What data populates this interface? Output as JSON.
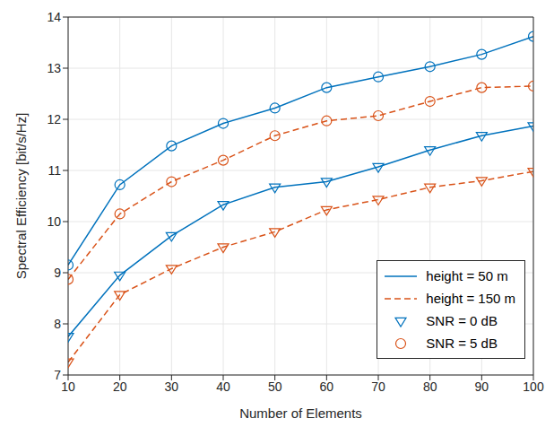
{
  "chart_data": {
    "type": "line",
    "x_label": "Number of Elements",
    "y_label": "Spectral Efficiency [bit/s/Hz]",
    "x": [
      10,
      20,
      30,
      40,
      50,
      60,
      70,
      80,
      90,
      100
    ],
    "series": [
      {
        "name": "height = 50 m",
        "color": "#0072bd",
        "line_style": "solid",
        "marker": "circle",
        "values": [
          9.15,
          10.72,
          11.48,
          11.92,
          12.22,
          12.62,
          12.83,
          13.03,
          13.27,
          13.62
        ]
      },
      {
        "name": "height = 150 m",
        "color": "#d95319",
        "line_style": "dashed",
        "marker": "circle",
        "values": [
          8.87,
          10.15,
          10.78,
          11.2,
          11.68,
          11.97,
          12.07,
          12.35,
          12.62,
          12.65
        ]
      },
      {
        "name": "height = 50 m",
        "color": "#0072bd",
        "line_style": "solid",
        "marker": "triangle",
        "values": [
          7.75,
          8.95,
          9.72,
          10.33,
          10.67,
          10.78,
          11.07,
          11.4,
          11.68,
          11.87
        ]
      },
      {
        "name": "height = 150 m",
        "color": "#d95319",
        "line_style": "dashed",
        "marker": "triangle",
        "values": [
          7.25,
          8.57,
          9.08,
          9.5,
          9.8,
          10.23,
          10.43,
          10.67,
          10.8,
          10.98
        ]
      }
    ],
    "marker_legend": [
      {
        "marker": "triangle",
        "color": "#0072bd",
        "label": "SNR = 0 dB"
      },
      {
        "marker": "circle",
        "color": "#d95319",
        "label": "SNR = 5 dB"
      }
    ],
    "xlim": [
      10,
      100
    ],
    "xticks": [
      10,
      20,
      30,
      40,
      50,
      60,
      70,
      80,
      90,
      100
    ],
    "ylim": [
      7,
      14
    ],
    "yticks": [
      7,
      8,
      9,
      10,
      11,
      12,
      13,
      14
    ],
    "grid": true,
    "legend": "lower right"
  }
}
